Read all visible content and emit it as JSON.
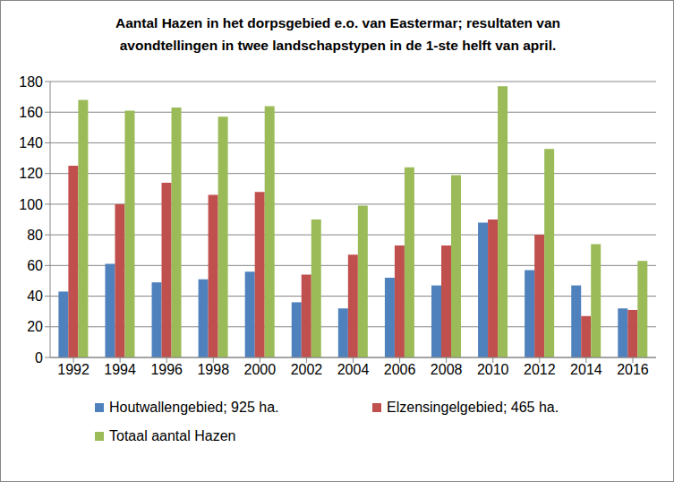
{
  "chart_data": {
    "type": "bar",
    "title": "Aantal Hazen in het dorpsgebied e.o. van Eastermar; resultaten van\navondtellingen in twee landschapstypen in de 1-ste helft van april.",
    "categories": [
      "1992",
      "1994",
      "1996",
      "1998",
      "2000",
      "2002",
      "2004",
      "2006",
      "2008",
      "2010",
      "2012",
      "2014",
      "2016"
    ],
    "series": [
      {
        "name": "Houtwallengebied; 925 ha.",
        "color": "#4f81bd",
        "values": [
          43,
          61,
          49,
          51,
          56,
          36,
          32,
          52,
          47,
          88,
          57,
          47,
          32
        ]
      },
      {
        "name": "Elzensingelgebied; 465 ha.",
        "color": "#c0504d",
        "values": [
          125,
          100,
          114,
          106,
          108,
          54,
          67,
          73,
          73,
          90,
          80,
          27,
          31
        ]
      },
      {
        "name": "Totaal aantal Hazen",
        "color": "#9bbb59",
        "values": [
          168,
          161,
          163,
          157,
          164,
          90,
          99,
          124,
          119,
          177,
          136,
          74,
          63
        ]
      }
    ],
    "ylim": [
      0,
      180
    ],
    "yticks": [
      0,
      20,
      40,
      60,
      80,
      100,
      120,
      140,
      160,
      180
    ],
    "grid": true
  }
}
